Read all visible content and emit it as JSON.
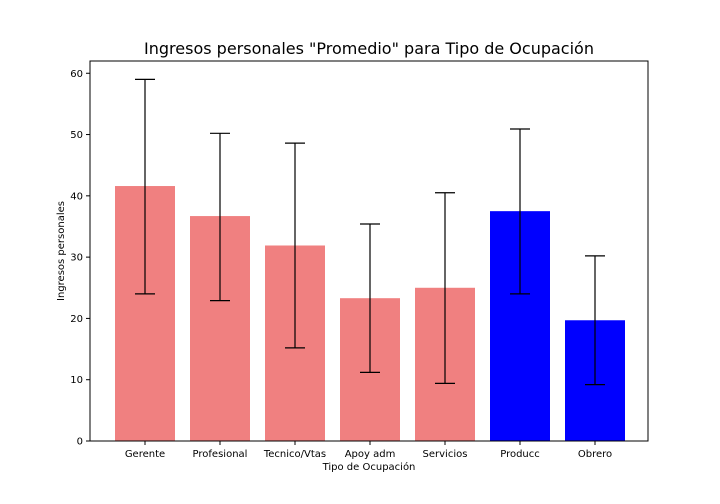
{
  "chart_data": {
    "type": "bar",
    "title": "Ingresos personales \"Promedio\" para Tipo de Ocupación",
    "xlabel": "Tipo de Ocupación",
    "ylabel": "Ingresos personales",
    "ylim": [
      0,
      62
    ],
    "yticks": [
      0,
      10,
      20,
      30,
      40,
      50,
      60
    ],
    "categories": [
      "Gerente",
      "Profesional",
      "Tecnico/Vtas",
      "Apoy adm",
      "Servicios",
      "Producc",
      "Obrero"
    ],
    "values": [
      41.6,
      36.7,
      31.9,
      23.3,
      25.0,
      37.5,
      19.7
    ],
    "error_low": [
      24.0,
      22.9,
      15.2,
      11.2,
      9.4,
      24.0,
      9.2
    ],
    "error_high": [
      59.0,
      50.2,
      48.6,
      35.4,
      40.5,
      50.9,
      30.2
    ],
    "bar_colors": [
      "#f08080",
      "#f08080",
      "#f08080",
      "#f08080",
      "#f08080",
      "#0000ff",
      "#0000ff"
    ],
    "error_color": "#000000",
    "grid": false,
    "legend": "none"
  }
}
